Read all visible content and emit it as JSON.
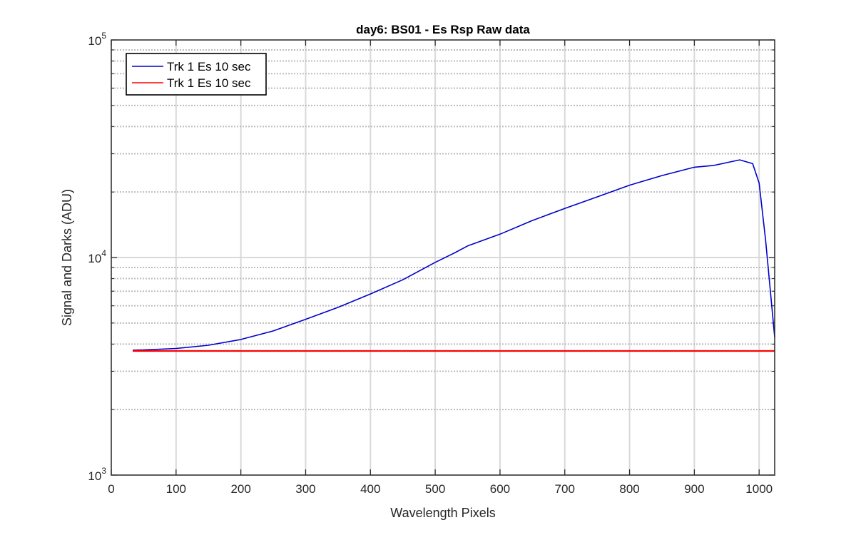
{
  "chart_data": {
    "type": "line",
    "title": "day6: BS01  - Es Rsp Raw data",
    "xlabel": "Wavelength Pixels",
    "ylabel": "Signal and Darks (ADU)",
    "xlim": [
      0,
      1024
    ],
    "ylim": [
      1000,
      100000
    ],
    "yscale": "log",
    "grid": true,
    "legend_position": "top-left",
    "x_ticks": [
      "0",
      "100",
      "200",
      "300",
      "400",
      "500",
      "600",
      "700",
      "800",
      "900",
      "1000"
    ],
    "y_ticks": [
      {
        "base": "10",
        "exp": "3"
      },
      {
        "base": "10",
        "exp": "4"
      },
      {
        "base": "10",
        "exp": "5"
      }
    ],
    "series": [
      {
        "name": "Trk 1 Es 10 sec",
        "color": "#0000cc",
        "x": [
          33,
          50,
          100,
          150,
          200,
          250,
          300,
          350,
          400,
          450,
          500,
          530,
          550,
          600,
          650,
          700,
          750,
          800,
          850,
          900,
          930,
          950,
          970,
          990,
          1000,
          1010,
          1024
        ],
        "y": [
          3750,
          3760,
          3820,
          3950,
          4200,
          4600,
          5200,
          5900,
          6800,
          7900,
          9500,
          10500,
          11300,
          12800,
          14800,
          16800,
          19000,
          21500,
          23800,
          26000,
          26500,
          27300,
          28100,
          27000,
          22000,
          12000,
          4300
        ]
      },
      {
        "name": "Trk 1 Es 10 sec",
        "color": "#ff0000",
        "x": [
          33,
          200,
          400,
          600,
          800,
          1000,
          1024
        ],
        "y": [
          3720,
          3720,
          3720,
          3720,
          3720,
          3720,
          3720
        ]
      }
    ]
  }
}
